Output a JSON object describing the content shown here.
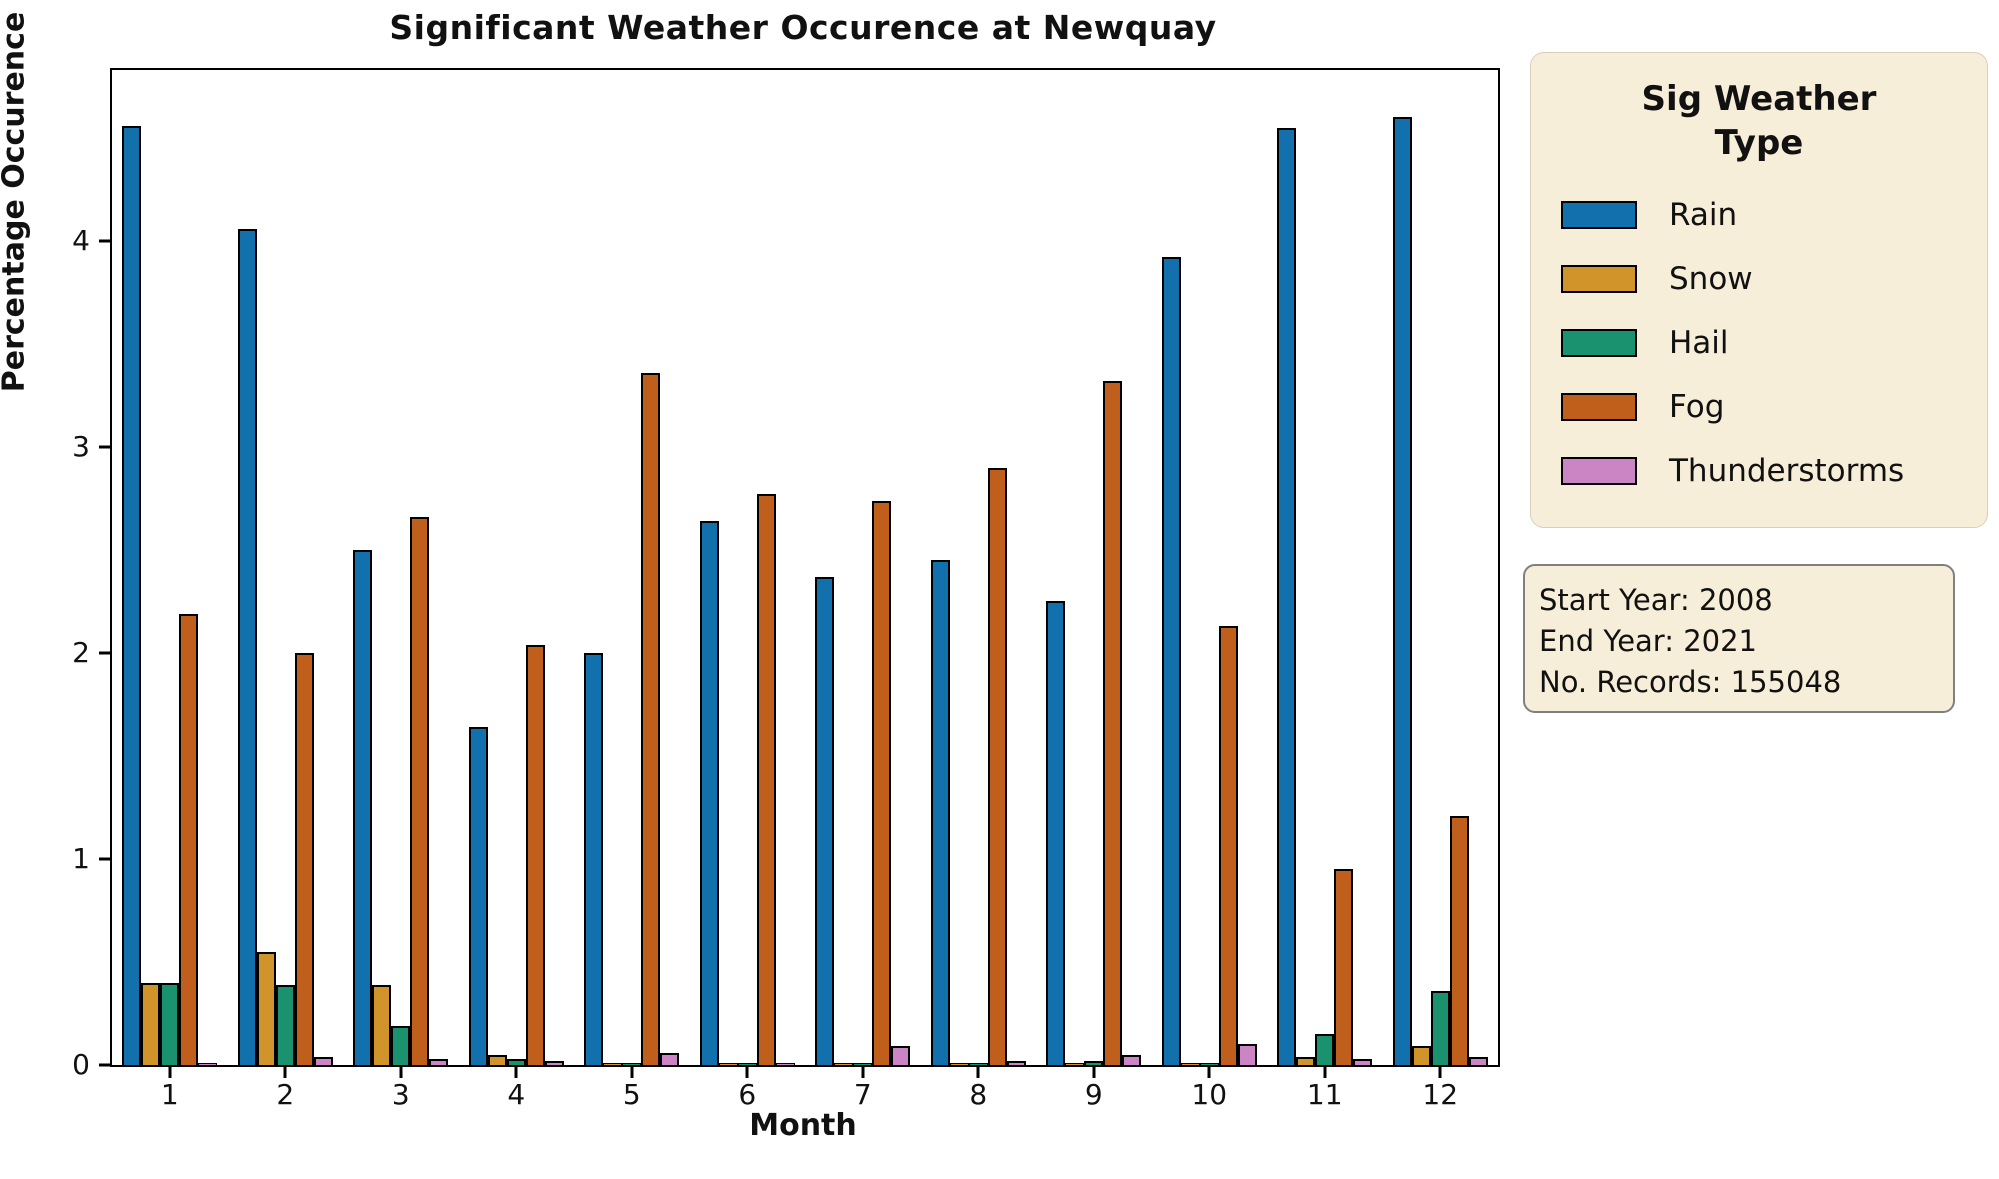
{
  "title": "Significant Weather Occurence at Newquay",
  "axes": {
    "xlabel": "Month",
    "ylabel": "Percentage Occurence",
    "yticks": [
      "0",
      "1",
      "2",
      "3",
      "4"
    ]
  },
  "legend": {
    "title_line1": "Sig Weather",
    "title_line2": "Type",
    "items": [
      {
        "label": "Rain",
        "color": "#1271ac"
      },
      {
        "label": "Snow",
        "color": "#d0942b"
      },
      {
        "label": "Hail",
        "color": "#1a9270"
      },
      {
        "label": "Fog",
        "color": "#c05e1b"
      },
      {
        "label": "Thunderstorms",
        "color": "#cc85c4"
      }
    ]
  },
  "info_box": {
    "lines": [
      "Start Year: 2008",
      "End Year: 2021",
      "No. Records: 155048"
    ]
  },
  "chart_data": {
    "type": "bar",
    "title": "Significant Weather Occurence at Newquay",
    "xlabel": "Month",
    "ylabel": "Percentage Occurence",
    "categories": [
      "1",
      "2",
      "3",
      "4",
      "5",
      "6",
      "7",
      "8",
      "9",
      "10",
      "11",
      "12"
    ],
    "ylim": [
      0,
      4.83
    ],
    "yticks": [
      0,
      1,
      2,
      3,
      4
    ],
    "grid": false,
    "legend_position": "outside-right",
    "series": [
      {
        "name": "Rain",
        "color": "#1271ac",
        "values": [
          4.56,
          4.06,
          2.5,
          1.64,
          2.0,
          2.64,
          2.37,
          2.45,
          2.25,
          3.92,
          4.55,
          4.6
        ]
      },
      {
        "name": "Snow",
        "color": "#d0942b",
        "values": [
          0.4,
          0.55,
          0.39,
          0.05,
          0.01,
          0.01,
          0.01,
          0.01,
          0.01,
          0.01,
          0.04,
          0.09
        ]
      },
      {
        "name": "Hail",
        "color": "#1a9270",
        "values": [
          0.4,
          0.39,
          0.19,
          0.03,
          0.01,
          0.01,
          0.01,
          0.01,
          0.02,
          0.01,
          0.15,
          0.36
        ]
      },
      {
        "name": "Fog",
        "color": "#c05e1b",
        "values": [
          2.19,
          2.0,
          2.66,
          2.04,
          3.36,
          2.77,
          2.74,
          2.9,
          3.32,
          2.13,
          0.95,
          1.21
        ]
      },
      {
        "name": "Thunderstorms",
        "color": "#cc85c4",
        "values": [
          0.01,
          0.04,
          0.03,
          0.02,
          0.06,
          0.01,
          0.09,
          0.02,
          0.05,
          0.1,
          0.03,
          0.04
        ]
      }
    ]
  }
}
